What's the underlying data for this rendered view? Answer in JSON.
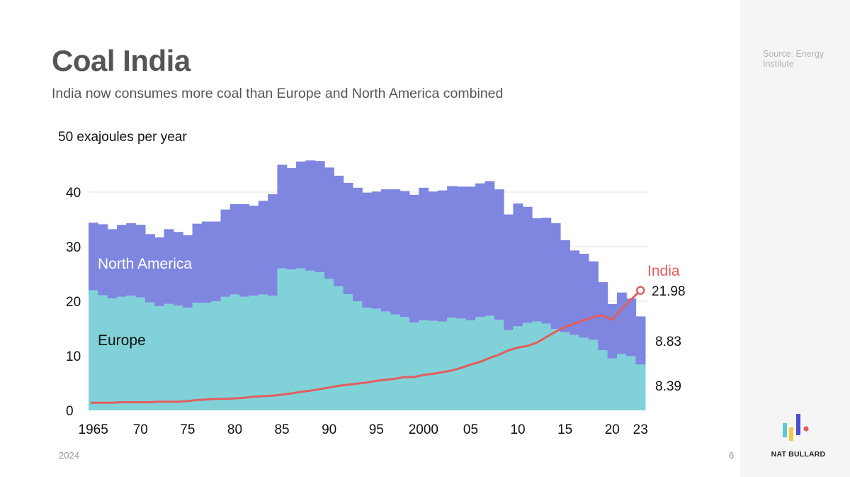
{
  "title": "Coal India",
  "subtitle": "India now consumes more coal than Europe and North America combined",
  "source": "Source: Energy Institute",
  "footer": {
    "year": "2024",
    "page": "6",
    "brand": "NAT BULLARD"
  },
  "colors": {
    "europe": "#80d2d8",
    "north_america": "#7f86e0",
    "india": "#e35d5d",
    "grid": "#e3e3e3"
  },
  "chart_data": {
    "type": "area",
    "stacked": true,
    "unit_label": "50 exajoules per year",
    "ylim": [
      0,
      50
    ],
    "y_ticks": [
      0,
      10,
      20,
      30,
      40
    ],
    "y_tick_labels": [
      "0",
      "10",
      "20",
      "30",
      "40"
    ],
    "x_ticks": [
      1965,
      1970,
      1975,
      1980,
      1985,
      1990,
      1995,
      2000,
      2005,
      2010,
      2015,
      2020,
      2023
    ],
    "x_tick_labels": [
      "1965",
      "70",
      "75",
      "80",
      "85",
      "90",
      "95",
      "2000",
      "05",
      "10",
      "15",
      "20",
      "23"
    ],
    "years": [
      1965,
      1966,
      1967,
      1968,
      1969,
      1970,
      1971,
      1972,
      1973,
      1974,
      1975,
      1976,
      1977,
      1978,
      1979,
      1980,
      1981,
      1982,
      1983,
      1984,
      1985,
      1986,
      1987,
      1988,
      1989,
      1990,
      1991,
      1992,
      1993,
      1994,
      1995,
      1996,
      1997,
      1998,
      1999,
      2000,
      2001,
      2002,
      2003,
      2004,
      2005,
      2006,
      2007,
      2008,
      2009,
      2010,
      2011,
      2012,
      2013,
      2014,
      2015,
      2016,
      2017,
      2018,
      2019,
      2020,
      2021,
      2022,
      2023
    ],
    "series": [
      {
        "name": "Europe",
        "label": "Europe",
        "values": [
          22.0,
          21.1,
          20.5,
          20.8,
          21.0,
          20.7,
          19.8,
          19.1,
          19.5,
          19.2,
          18.8,
          19.7,
          19.7,
          20.0,
          20.8,
          21.2,
          20.8,
          21.0,
          21.2,
          21.0,
          26.0,
          25.8,
          26.0,
          25.6,
          25.3,
          24.1,
          22.7,
          21.3,
          20.0,
          18.8,
          18.6,
          18.1,
          17.6,
          17.1,
          16.1,
          16.5,
          16.4,
          16.3,
          17.0,
          16.8,
          16.5,
          17.1,
          17.3,
          16.6,
          14.7,
          15.4,
          16.0,
          16.3,
          15.9,
          14.9,
          14.3,
          13.8,
          13.3,
          12.9,
          11.0,
          9.5,
          10.3,
          9.9,
          8.39
        ],
        "total": [
          34.4,
          34.1,
          33.2,
          34.0,
          34.3,
          34.0,
          32.3,
          31.7,
          33.2,
          32.7,
          32.1,
          34.2,
          34.6,
          34.6,
          36.8,
          37.8,
          37.8,
          37.5,
          38.4,
          39.6,
          45.0,
          44.4,
          45.6,
          45.8,
          45.7,
          44.5,
          43.0,
          41.7,
          40.8,
          39.9,
          40.1,
          40.5,
          40.5,
          40.2,
          39.5,
          40.8,
          40.1,
          40.3,
          41.1,
          41.0,
          41.0,
          41.6,
          42.0,
          40.5,
          35.9,
          37.9,
          37.3,
          35.2,
          35.3,
          34.3,
          31.2,
          29.3,
          28.7,
          27.3,
          23.5,
          19.5,
          21.6,
          20.5,
          17.22
        ]
      },
      {
        "name": "North America",
        "label": "North America",
        "values": [
          12.4,
          13.0,
          12.7,
          13.2,
          13.3,
          13.3,
          12.5,
          12.6,
          13.7,
          13.5,
          13.3,
          14.5,
          14.9,
          14.6,
          16.0,
          16.6,
          17.0,
          16.5,
          17.2,
          18.6,
          19.0,
          18.6,
          19.6,
          20.2,
          20.4,
          20.4,
          20.3,
          20.4,
          20.8,
          21.1,
          21.5,
          22.4,
          22.9,
          23.1,
          23.4,
          24.3,
          23.7,
          24.0,
          24.1,
          24.2,
          24.5,
          24.5,
          24.7,
          23.9,
          21.2,
          22.5,
          21.3,
          18.9,
          19.4,
          19.4,
          16.9,
          15.5,
          15.4,
          14.4,
          12.5,
          10.0,
          11.3,
          10.6,
          8.83
        ]
      },
      {
        "name": "India",
        "label": "India",
        "values": [
          1.4,
          1.4,
          1.4,
          1.5,
          1.5,
          1.5,
          1.5,
          1.6,
          1.6,
          1.6,
          1.7,
          1.9,
          2.0,
          2.1,
          2.1,
          2.2,
          2.3,
          2.5,
          2.6,
          2.7,
          2.9,
          3.1,
          3.4,
          3.6,
          3.9,
          4.2,
          4.5,
          4.7,
          4.9,
          5.1,
          5.4,
          5.6,
          5.8,
          6.1,
          6.1,
          6.5,
          6.7,
          7.0,
          7.3,
          7.8,
          8.4,
          8.9,
          9.6,
          10.2,
          11.0,
          11.5,
          11.8,
          12.4,
          13.4,
          14.4,
          15.3,
          15.9,
          16.5,
          17.1,
          17.4,
          16.6,
          18.6,
          20.3,
          21.98
        ]
      }
    ],
    "end_labels": {
      "india": "21.98",
      "north_america": "8.83",
      "europe": "8.39"
    }
  }
}
